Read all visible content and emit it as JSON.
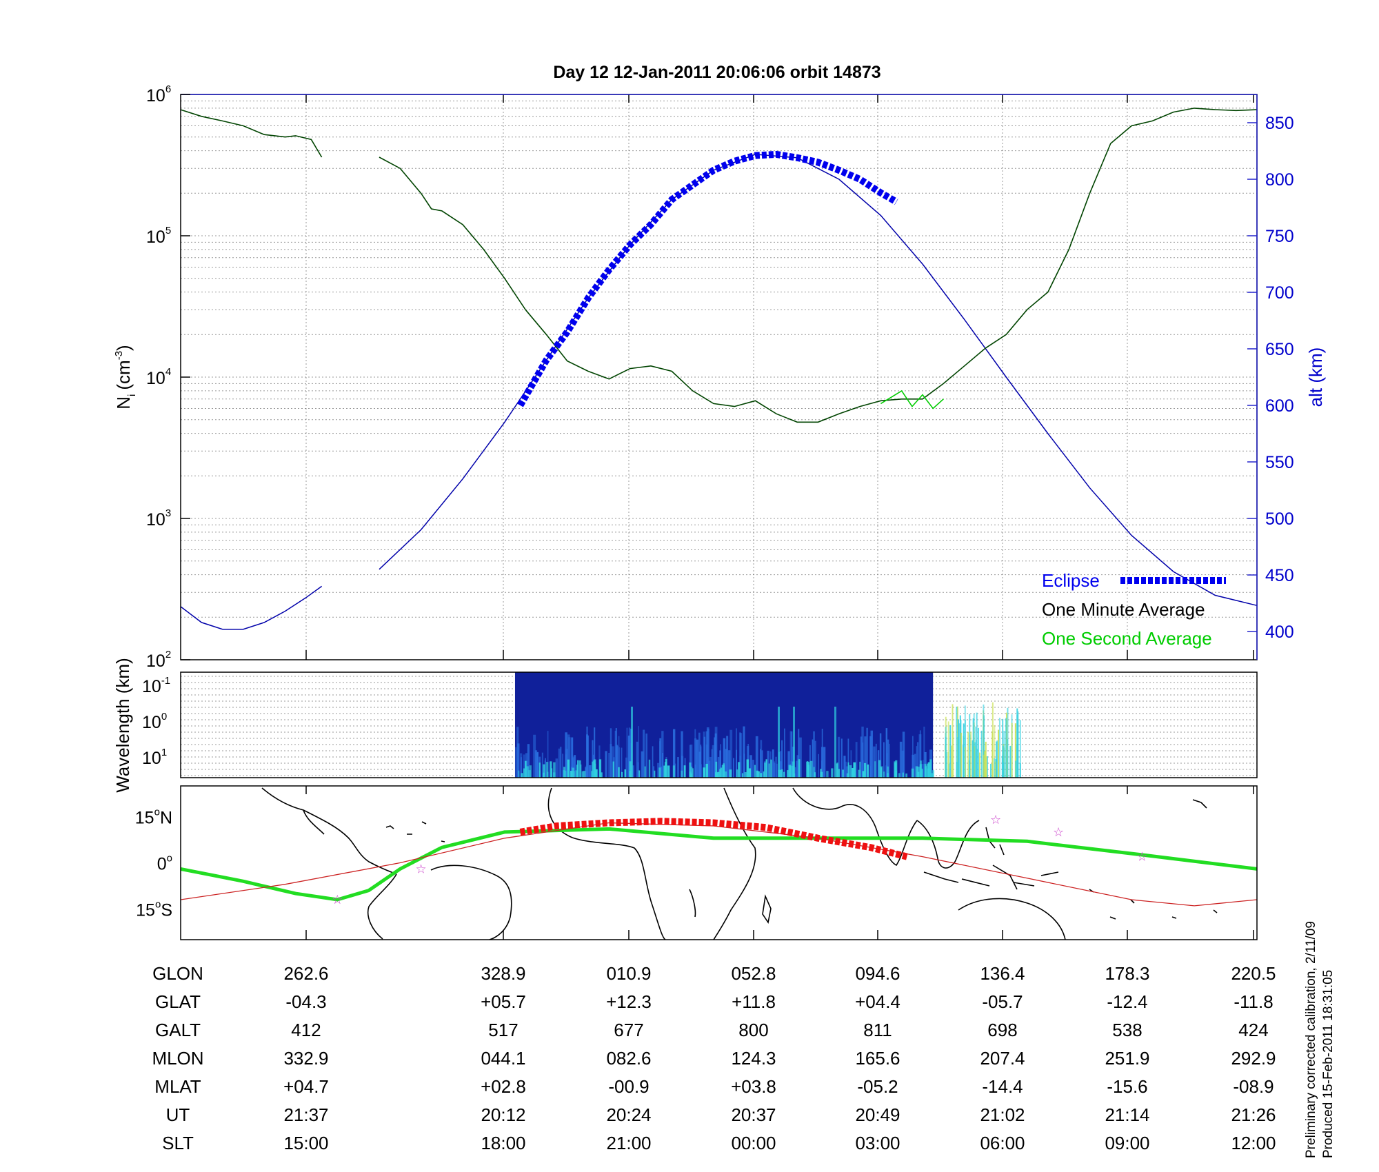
{
  "chart_data": [
    {
      "type": "line",
      "panel": "ion-density",
      "title": "Day 12  12-Jan-2011 20:06:06   orbit 14873",
      "ylabel": "Ni (cm-3)",
      "ylabel_main": "N",
      "ylabel_sub": "i",
      "ylabel_unit": "(cm",
      "ylabel_exp": "-3",
      "ylabel_close": ")",
      "yscale": "log",
      "ylim": [
        100,
        1000000
      ],
      "yticks": [
        {
          "base": "10",
          "exp": "2",
          "value": 100
        },
        {
          "base": "10",
          "exp": "3",
          "value": 1000
        },
        {
          "base": "10",
          "exp": "4",
          "value": 10000
        },
        {
          "base": "10",
          "exp": "5",
          "value": 100000
        },
        {
          "base": "10",
          "exp": "6",
          "value": 1000000
        }
      ],
      "y2label": "alt (km)",
      "y2lim": [
        375,
        875
      ],
      "y2ticks": [
        "400",
        "450",
        "500",
        "550",
        "600",
        "650",
        "700",
        "750",
        "800",
        "850"
      ],
      "x_ticks_ut": [
        "21:37",
        "20:12",
        "20:24",
        "20:37",
        "20:49",
        "21:02",
        "21:14",
        "21:26"
      ],
      "xlim_min": [
        -11,
        92
      ],
      "grid": true,
      "legend": [
        {
          "label": "Eclipse",
          "color": "#0000ee"
        },
        {
          "label": "One Minute Average",
          "color": "#000000"
        },
        {
          "label": "One Second Average",
          "color": "#00cc00"
        }
      ],
      "series": [
        {
          "name": "One Minute Average",
          "color": "#004400",
          "units": "cm-3",
          "segments": [
            {
              "x": [
                -11,
                -9,
                -7,
                -5,
                -3,
                -1,
                0,
                1.5,
                2.5
              ],
              "y": [
                780000,
                700000,
                650000,
                600000,
                520000,
                500000,
                510000,
                480000,
                360000
              ]
            },
            {
              "x": [
                8,
                10,
                12,
                13,
                14,
                16,
                18,
                20,
                22,
                24,
                26,
                28,
                30,
                32,
                34,
                36,
                38,
                40,
                42,
                44,
                46,
                48,
                50,
                52,
                54,
                56,
                58,
                60,
                62,
                64,
                66,
                68,
                70,
                72,
                74,
                76,
                78,
                80,
                82,
                84,
                86,
                88,
                90,
                92
              ],
              "y": [
                360000,
                300000,
                200000,
                155000,
                150000,
                120000,
                80000,
                50000,
                30000,
                20000,
                13000,
                11000,
                9700,
                11500,
                12000,
                11000,
                8000,
                6500,
                6200,
                6800,
                5500,
                4800,
                4800,
                5500,
                6200,
                6800,
                7000,
                7000,
                9000,
                12000,
                16000,
                20000,
                30000,
                40000,
                80000,
                200000,
                450000,
                600000,
                650000,
                750000,
                800000,
                780000,
                770000,
                780000
              ]
            }
          ]
        },
        {
          "name": "One Second Average",
          "color": "#00cc00",
          "units": "cm-3",
          "x": [
            56,
            57,
            58,
            59,
            60,
            61,
            62
          ],
          "y": [
            6500,
            7200,
            8000,
            6200,
            7500,
            6000,
            7000
          ]
        },
        {
          "name": "alt",
          "color": "#0000aa",
          "units": "km",
          "segments": [
            {
              "x": [
                -11,
                -9,
                -7,
                -5,
                -3,
                -1,
                1,
                2.5
              ],
              "y": [
                422,
                408,
                402,
                402,
                408,
                418,
                430,
                440
              ]
            },
            {
              "x": [
                8,
                12,
                16,
                20,
                24,
                28,
                32,
                36,
                40,
                44,
                48,
                52,
                56,
                60,
                64,
                68,
                72,
                76,
                80,
                84,
                88,
                92
              ],
              "y": [
                455,
                490,
                535,
                585,
                640,
                695,
                742,
                782,
                808,
                822,
                819,
                800,
                768,
                725,
                676,
                625,
                575,
                527,
                485,
                453,
                432,
                423
              ]
            }
          ]
        },
        {
          "name": "Eclipse",
          "color": "#0000ee",
          "units": "km",
          "x": [
            21.5,
            24,
            26,
            28,
            30,
            32,
            34,
            36,
            38,
            40,
            42,
            44,
            46,
            48,
            50,
            52,
            54,
            56,
            57.5
          ],
          "y": [
            600,
            640,
            665,
            695,
            720,
            742,
            760,
            782,
            795,
            808,
            816,
            821,
            822,
            819,
            815,
            808,
            800,
            788,
            780
          ]
        }
      ]
    },
    {
      "type": "heatmap",
      "panel": "spectrogram",
      "ylabel": "Wavelength (km)",
      "yticks": [
        {
          "base": "10",
          "exp": "-1"
        },
        {
          "base": "10",
          "exp": "0"
        },
        {
          "base": "10",
          "exp": "1"
        }
      ],
      "data_x_range_min": [
        21,
        61
      ],
      "colors": {
        "low": "#10209a",
        "mid": "#2a70e0",
        "high": "#30d0e0",
        "peak": "#c8e050"
      }
    },
    {
      "type": "line",
      "panel": "ground-track-map",
      "yticks": [
        {
          "label": "15",
          "deg": "o",
          "hemi": "N",
          "lat": 15
        },
        {
          "label": "0",
          "deg": "o",
          "hemi": "",
          "lat": 0
        },
        {
          "label": "15",
          "deg": "o",
          "hemi": "S",
          "lat": -15
        }
      ],
      "ylim": [
        -25,
        25
      ],
      "series": [
        {
          "name": "ground track",
          "color": "#cc2222",
          "x": [
            -11,
            -1,
            10,
            20,
            30,
            40,
            50,
            60,
            70,
            80,
            86,
            92
          ],
          "y": [
            -12,
            -7,
            0,
            8,
            13,
            12,
            8,
            2,
            -5,
            -12,
            -14,
            -12
          ]
        },
        {
          "name": "ground track eclipse",
          "color": "#ee1111",
          "x": [
            21.5,
            25,
            30,
            35,
            40,
            45,
            50,
            55,
            58.5
          ],
          "y": [
            10,
            12,
            13,
            13.5,
            13,
            11.5,
            8,
            5,
            2
          ]
        },
        {
          "name": "magnetic equator",
          "color": "#22dd22",
          "x": [
            -11,
            -5,
            0,
            4,
            7,
            10,
            14,
            20,
            30,
            40,
            50,
            60,
            70,
            80,
            92
          ],
          "y": [
            -2,
            -6,
            -10,
            -12,
            -9,
            -2,
            5,
            10,
            11,
            8,
            8,
            8,
            7,
            3,
            -2
          ]
        }
      ],
      "stars": [
        {
          "x": 4,
          "y": -12
        },
        {
          "x": 12,
          "y": -2
        },
        {
          "x": 67,
          "y": 14
        },
        {
          "x": 73,
          "y": 10
        },
        {
          "x": 81,
          "y": 2
        }
      ],
      "star_color": "#cc44cc"
    },
    {
      "type": "table",
      "panel": "orbit-parameters",
      "row_labels": [
        "GLON",
        "GLAT",
        "GALT",
        "MLON",
        "MLAT",
        "UT",
        "SLT"
      ],
      "columns": [
        {
          "values": [
            "262.6",
            "-04.3",
            "412",
            "332.9",
            "+04.7",
            "21:37",
            "15:00"
          ]
        },
        {
          "values": [
            "328.9",
            "+05.7",
            "517",
            "044.1",
            "+02.8",
            "20:12",
            "18:00"
          ]
        },
        {
          "values": [
            "010.9",
            "+12.3",
            "677",
            "082.6",
            "-00.9",
            "20:24",
            "21:00"
          ]
        },
        {
          "values": [
            "052.8",
            "+11.8",
            "800",
            "124.3",
            "+03.8",
            "20:37",
            "00:00"
          ]
        },
        {
          "values": [
            "094.6",
            "+04.4",
            "811",
            "165.6",
            "-05.2",
            "20:49",
            "03:00"
          ]
        },
        {
          "values": [
            "136.4",
            "-05.7",
            "698",
            "207.4",
            "-14.4",
            "21:02",
            "06:00"
          ]
        },
        {
          "values": [
            "178.3",
            "-12.4",
            "538",
            "251.9",
            "-15.6",
            "21:14",
            "09:00"
          ]
        },
        {
          "values": [
            "220.5",
            "-11.8",
            "424",
            "292.9",
            "-08.9",
            "21:26",
            "12:00"
          ]
        }
      ]
    }
  ],
  "footnote": {
    "line1": "Preliminary corrected calibration, 2/11/09",
    "line2": "Produced 15-Feb-2011 18:31:05"
  }
}
